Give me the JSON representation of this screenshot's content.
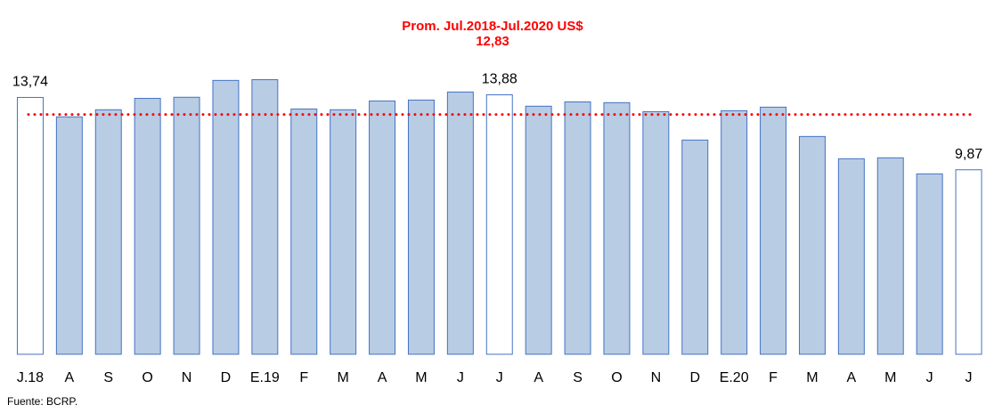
{
  "chart_data": {
    "type": "bar",
    "title": "Prom. Jul.2018-Jul.2020 US$",
    "reference_line": {
      "value": 12.83,
      "label": "12,83",
      "color": "#ff0000"
    },
    "categories": [
      "J.18",
      "A",
      "S",
      "O",
      "N",
      "D",
      "E.19",
      "F",
      "M",
      "A",
      "M",
      "J",
      "J",
      "A",
      "S",
      "O",
      "N",
      "D",
      "E.20",
      "F",
      "M",
      "A",
      "M",
      "J",
      "J"
    ],
    "values": [
      13.74,
      12.7,
      13.08,
      13.69,
      13.75,
      14.65,
      14.69,
      13.12,
      13.08,
      13.55,
      13.6,
      14.03,
      13.88,
      13.27,
      13.5,
      13.46,
      12.98,
      11.46,
      13.03,
      13.22,
      11.65,
      10.46,
      10.51,
      9.65,
      9.87
    ],
    "value_labels": [
      "13,74",
      null,
      null,
      null,
      null,
      null,
      null,
      null,
      null,
      null,
      null,
      null,
      "13,88",
      null,
      null,
      null,
      null,
      null,
      null,
      null,
      null,
      null,
      null,
      null,
      "9,87"
    ],
    "colors": [
      "#ffffff",
      "#b8cce4",
      "#b8cce4",
      "#b8cce4",
      "#b8cce4",
      "#b8cce4",
      "#b8cce4",
      "#b8cce4",
      "#b8cce4",
      "#b8cce4",
      "#b8cce4",
      "#b8cce4",
      "#ffffff",
      "#b8cce4",
      "#b8cce4",
      "#b8cce4",
      "#b8cce4",
      "#b8cce4",
      "#b8cce4",
      "#b8cce4",
      "#b8cce4",
      "#b8cce4",
      "#b8cce4",
      "#b8cce4",
      "#ffffff"
    ],
    "edge_color": "#4472c4",
    "ylim": [
      0,
      18
    ],
    "source": "Fuente: BCRP."
  }
}
